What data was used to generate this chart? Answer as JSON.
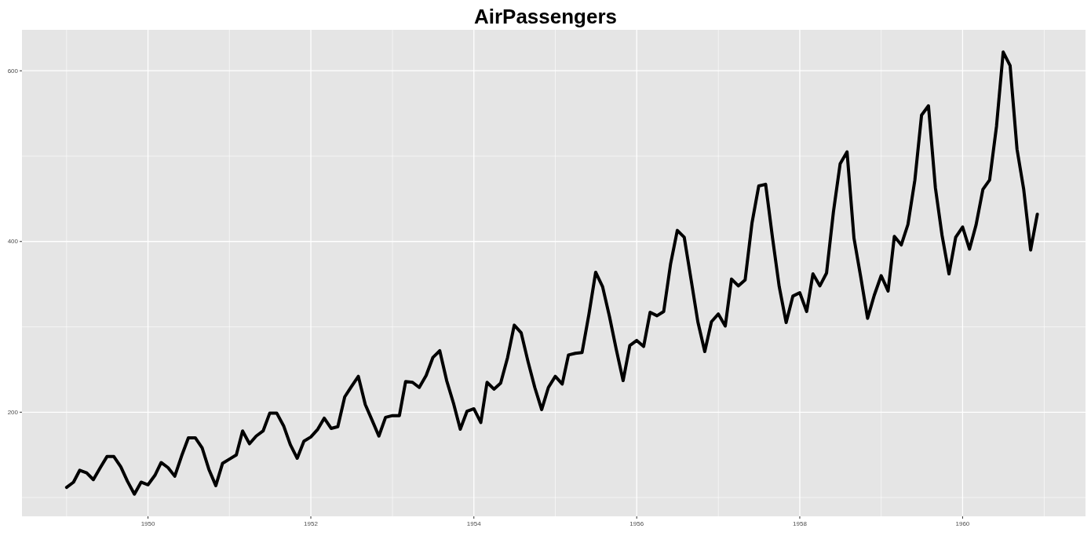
{
  "chart_data": {
    "type": "line",
    "title": "AirPassengers",
    "x": [
      "1949-01",
      "1949-02",
      "1949-03",
      "1949-04",
      "1949-05",
      "1949-06",
      "1949-07",
      "1949-08",
      "1949-09",
      "1949-10",
      "1949-11",
      "1949-12",
      "1950-01",
      "1950-02",
      "1950-03",
      "1950-04",
      "1950-05",
      "1950-06",
      "1950-07",
      "1950-08",
      "1950-09",
      "1950-10",
      "1950-11",
      "1950-12",
      "1951-01",
      "1951-02",
      "1951-03",
      "1951-04",
      "1951-05",
      "1951-06",
      "1951-07",
      "1951-08",
      "1951-09",
      "1951-10",
      "1951-11",
      "1951-12",
      "1952-01",
      "1952-02",
      "1952-03",
      "1952-04",
      "1952-05",
      "1952-06",
      "1952-07",
      "1952-08",
      "1952-09",
      "1952-10",
      "1952-11",
      "1952-12",
      "1953-01",
      "1953-02",
      "1953-03",
      "1953-04",
      "1953-05",
      "1953-06",
      "1953-07",
      "1953-08",
      "1953-09",
      "1953-10",
      "1953-11",
      "1953-12",
      "1954-01",
      "1954-02",
      "1954-03",
      "1954-04",
      "1954-05",
      "1954-06",
      "1954-07",
      "1954-08",
      "1954-09",
      "1954-10",
      "1954-11",
      "1954-12",
      "1955-01",
      "1955-02",
      "1955-03",
      "1955-04",
      "1955-05",
      "1955-06",
      "1955-07",
      "1955-08",
      "1955-09",
      "1955-10",
      "1955-11",
      "1955-12",
      "1956-01",
      "1956-02",
      "1956-03",
      "1956-04",
      "1956-05",
      "1956-06",
      "1956-07",
      "1956-08",
      "1956-09",
      "1956-10",
      "1956-11",
      "1956-12",
      "1957-01",
      "1957-02",
      "1957-03",
      "1957-04",
      "1957-05",
      "1957-06",
      "1957-07",
      "1957-08",
      "1957-09",
      "1957-10",
      "1957-11",
      "1957-12",
      "1958-01",
      "1958-02",
      "1958-03",
      "1958-04",
      "1958-05",
      "1958-06",
      "1958-07",
      "1958-08",
      "1958-09",
      "1958-10",
      "1958-11",
      "1958-12",
      "1959-01",
      "1959-02",
      "1959-03",
      "1959-04",
      "1959-05",
      "1959-06",
      "1959-07",
      "1959-08",
      "1959-09",
      "1959-10",
      "1959-11",
      "1959-12",
      "1960-01",
      "1960-02",
      "1960-03",
      "1960-04",
      "1960-05",
      "1960-06",
      "1960-07",
      "1960-08",
      "1960-09",
      "1960-10",
      "1960-11",
      "1960-12"
    ],
    "series": [
      {
        "color": "#000000",
        "values": [
          112,
          118,
          132,
          129,
          121,
          135,
          148,
          148,
          136,
          119,
          104,
          118,
          115,
          126,
          141,
          135,
          125,
          149,
          170,
          170,
          158,
          133,
          114,
          140,
          145,
          150,
          178,
          163,
          172,
          178,
          199,
          199,
          184,
          162,
          146,
          166,
          171,
          180,
          193,
          181,
          183,
          218,
          230,
          242,
          209,
          191,
          172,
          194,
          196,
          196,
          236,
          235,
          229,
          243,
          264,
          272,
          237,
          211,
          180,
          201,
          204,
          188,
          235,
          227,
          234,
          264,
          302,
          293,
          259,
          229,
          203,
          229,
          242,
          233,
          267,
          269,
          270,
          315,
          364,
          347,
          312,
          274,
          237,
          278,
          284,
          277,
          317,
          313,
          318,
          374,
          413,
          405,
          355,
          306,
          271,
          306,
          315,
          301,
          356,
          348,
          355,
          422,
          465,
          467,
          404,
          347,
          305,
          336,
          340,
          318,
          362,
          348,
          363,
          435,
          491,
          505,
          404,
          359,
          310,
          337,
          360,
          342,
          406,
          396,
          420,
          472,
          548,
          559,
          463,
          407,
          362,
          405,
          417,
          391,
          419,
          461,
          472,
          535,
          622,
          606,
          508,
          461,
          390,
          432
        ]
      }
    ],
    "xlim": [
      "1948-06-15",
      "1961-07-05"
    ],
    "xticks": [
      {
        "value": "1949",
        "label": null
      },
      {
        "value": "1950",
        "label": "1950"
      },
      {
        "value": "1951",
        "label": null
      },
      {
        "value": "1952",
        "label": "1952"
      },
      {
        "value": "1953",
        "label": null
      },
      {
        "value": "1954",
        "label": "1954"
      },
      {
        "value": "1955",
        "label": null
      },
      {
        "value": "1956",
        "label": "1956"
      },
      {
        "value": "1957",
        "label": null
      },
      {
        "value": "1958",
        "label": "1958"
      },
      {
        "value": "1959",
        "label": null
      },
      {
        "value": "1960",
        "label": "1960"
      },
      {
        "value": "1961",
        "label": null
      }
    ],
    "ylim": [
      78,
      648
    ],
    "yticks": [
      {
        "value": 100,
        "label": null
      },
      200,
      {
        "value": 300,
        "label": null
      },
      400,
      {
        "value": 500,
        "label": null
      },
      600
    ],
    "grid": true,
    "line_style": "solid",
    "marker": "none"
  }
}
